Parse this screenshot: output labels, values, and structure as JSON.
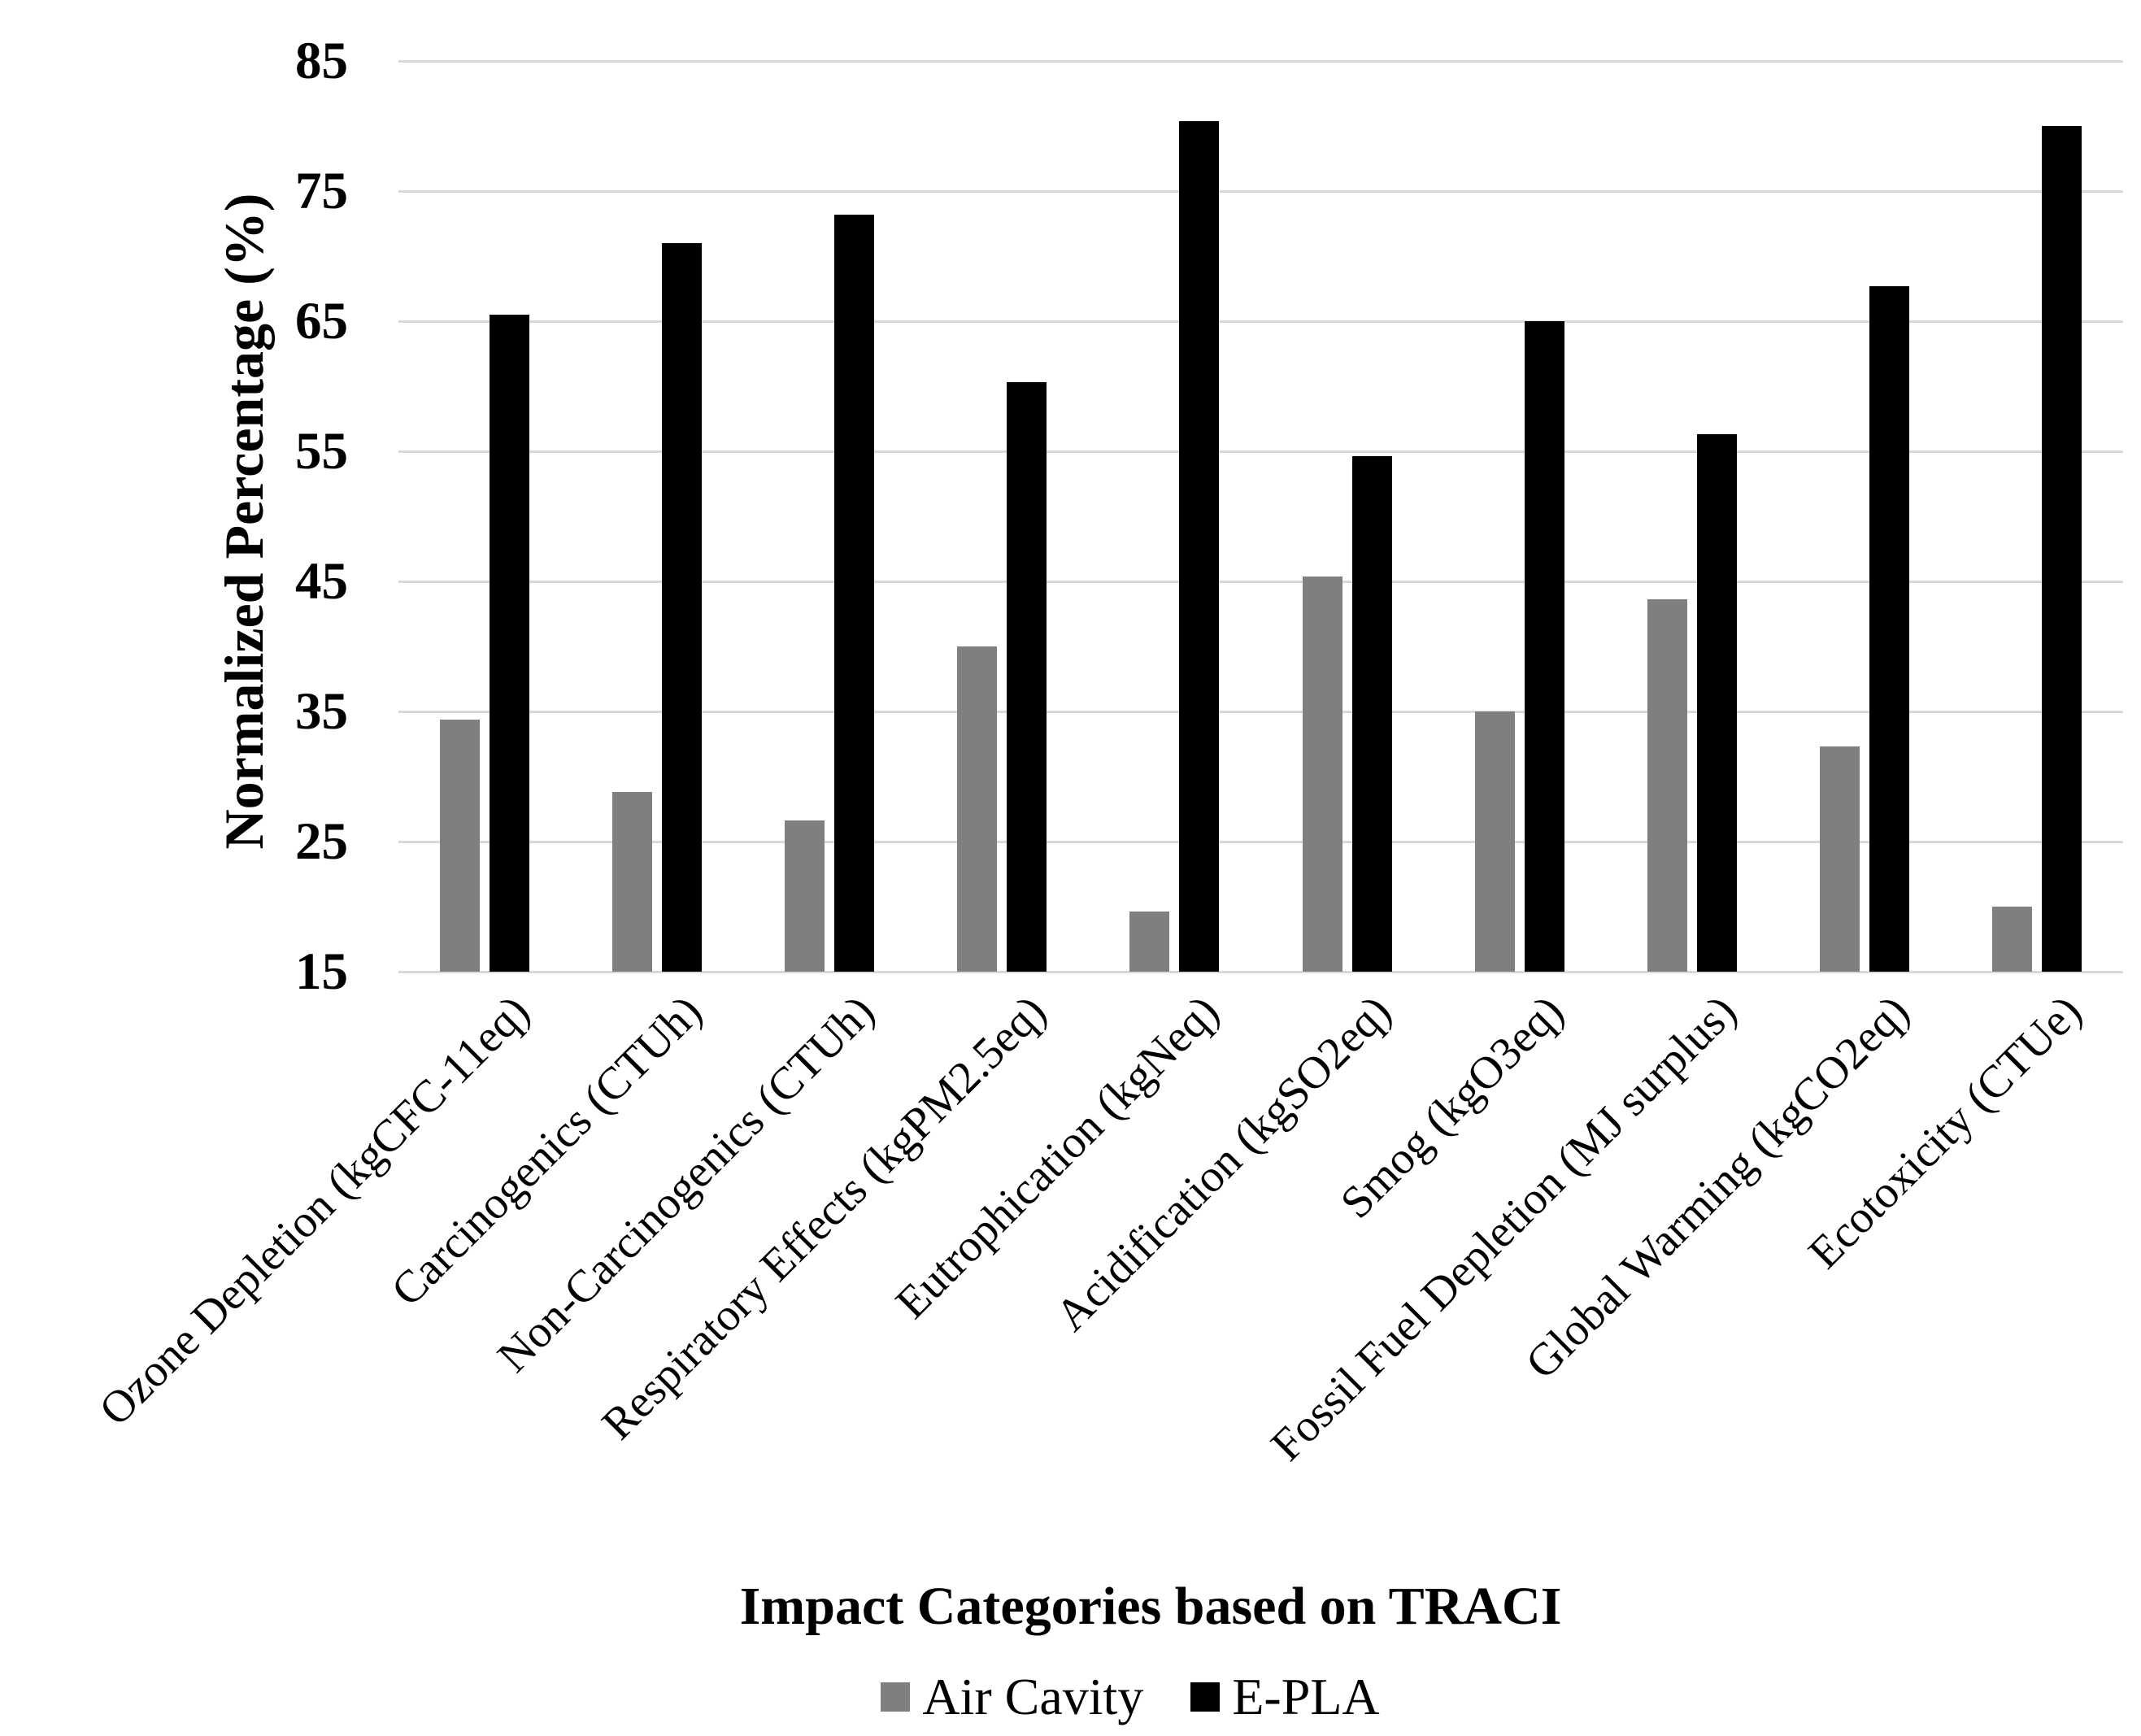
{
  "chart_data": {
    "type": "bar",
    "title": "",
    "xlabel": "Impact Categories based on TRACI",
    "ylabel": "Normalized Percentage (%)",
    "ylim": [
      15,
      85
    ],
    "yticks": [
      15,
      25,
      35,
      45,
      55,
      65,
      75,
      85
    ],
    "baseline_value": 15,
    "grid": "horizontal",
    "gridline_color": "#d9d9d9",
    "background_color": "#ffffff",
    "legend_position": "bottom",
    "categories": [
      "Ozone Depletion (kgCFC-11eq)",
      "Carcinogenics (CTUh)",
      "Non-Carcinogenics (CTUh)",
      "Respiratory Effects (kgPM2.5eq)",
      "Eutrophication (kgNeq)",
      "Acidification (kgSO2eq)",
      "Smog (kgO3eq)",
      "Fossil Fuel Depletion (MJ surplus)",
      "Global Warming (kgCO2eq)",
      "Ecotoxicity (CTUe)"
    ],
    "series": [
      {
        "name": "Air Cavity",
        "color": "#7f7f7f",
        "values": [
          34.4,
          28.8,
          26.6,
          40.0,
          19.6,
          45.4,
          35.0,
          43.6,
          32.3,
          20.0
        ]
      },
      {
        "name": "E-PLA",
        "color": "#000000",
        "values": [
          65.5,
          71.0,
          73.2,
          60.3,
          80.4,
          54.6,
          65.0,
          56.3,
          67.7,
          80.0
        ]
      }
    ]
  }
}
